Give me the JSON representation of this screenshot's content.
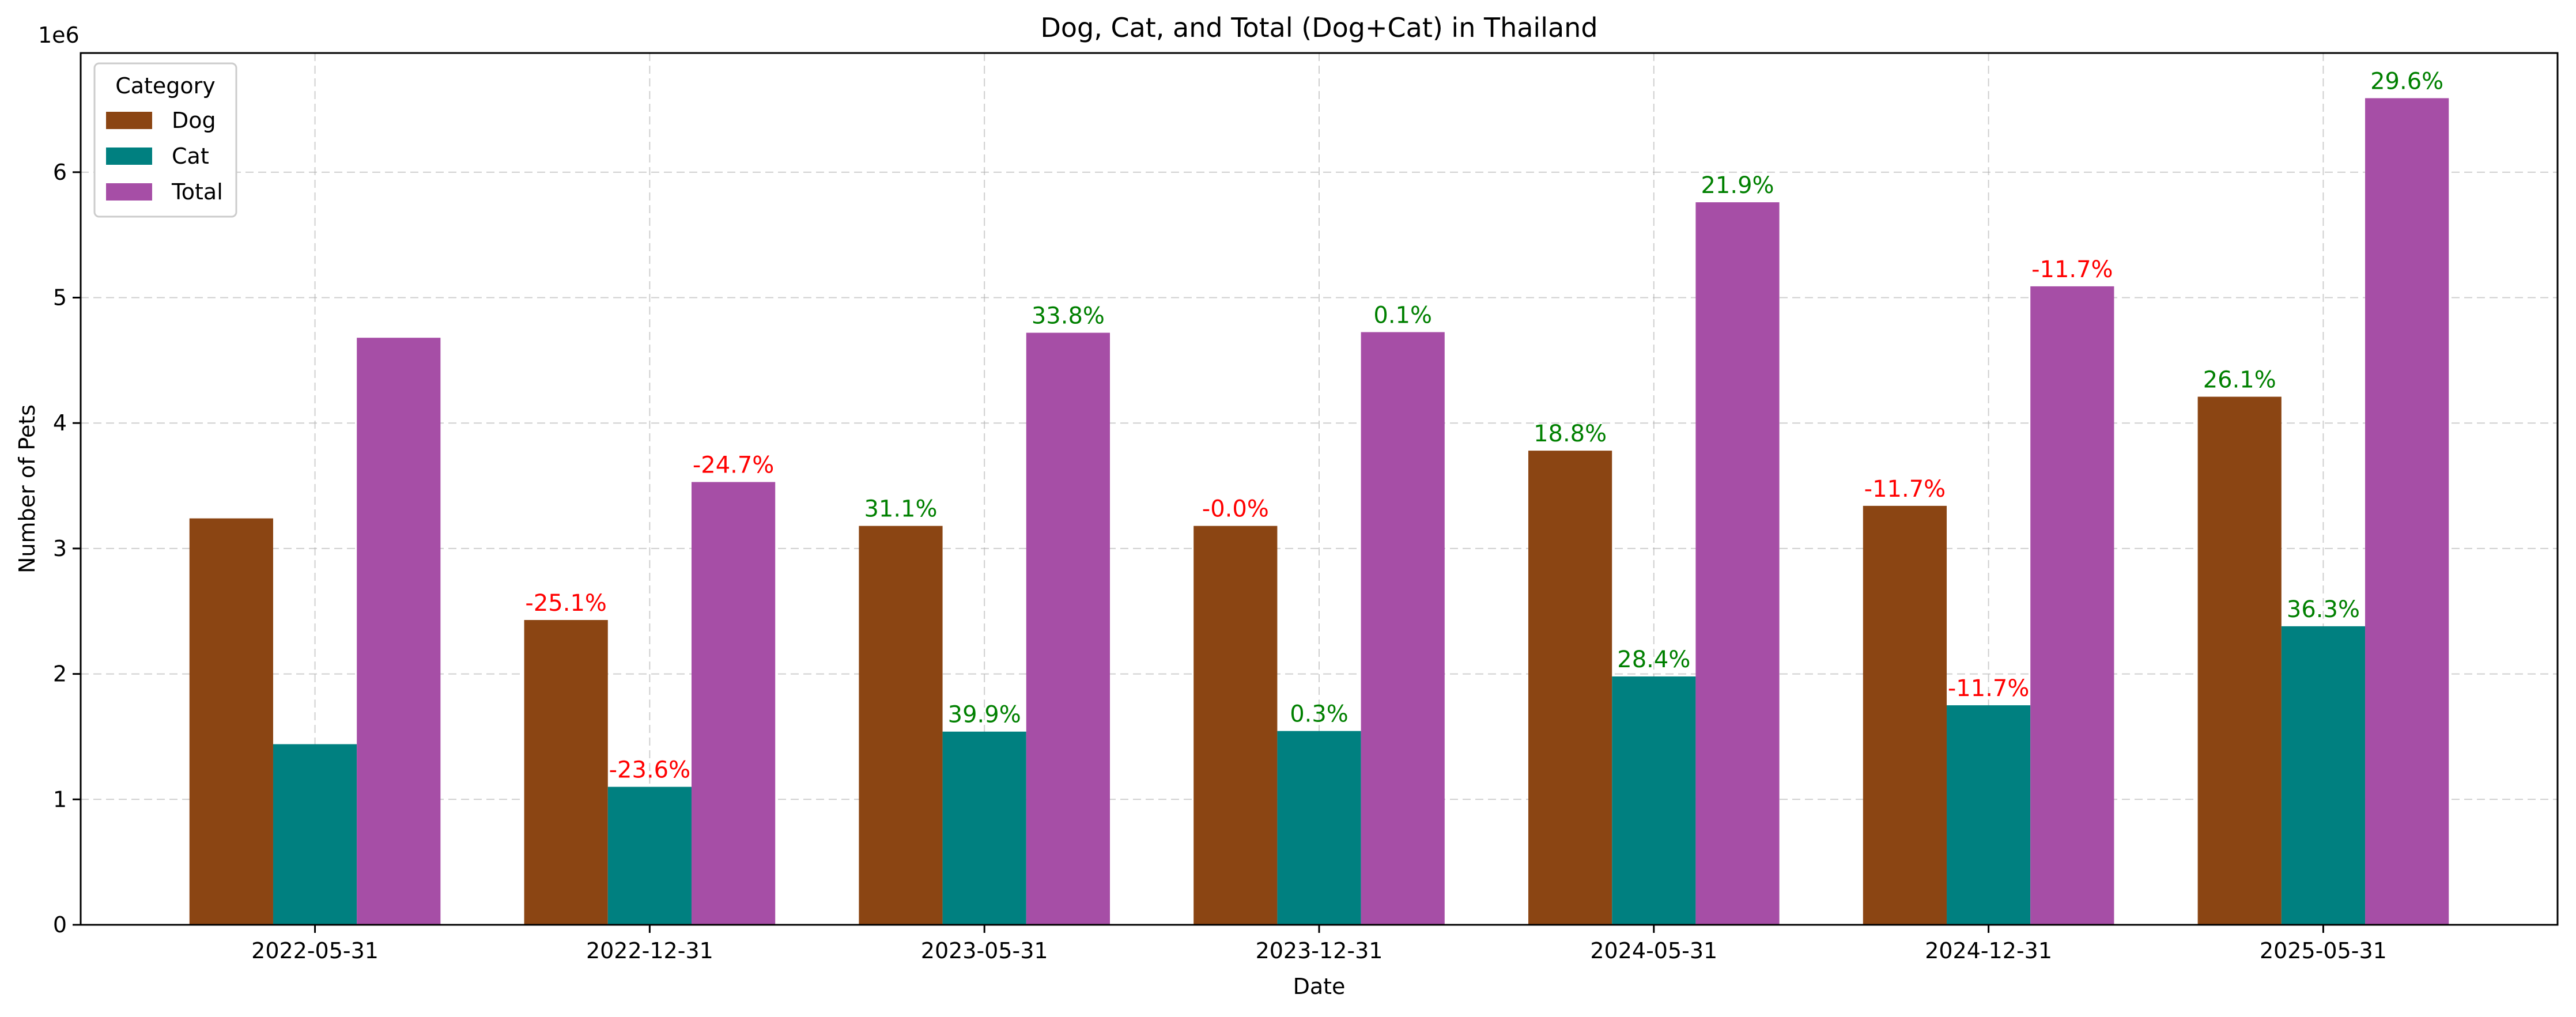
{
  "chart_data": {
    "type": "bar",
    "title": "Dog, Cat, and Total (Dog+Cat) in Thailand",
    "xlabel": "Date",
    "ylabel": "Number of Pets",
    "y_offset_label": "1e6",
    "ylim": [
      0,
      6.95
    ],
    "yticks": [
      "0",
      "1",
      "2",
      "3",
      "4",
      "5",
      "6"
    ],
    "grid": true,
    "categories": [
      "2022-05-31",
      "2022-12-31",
      "2023-05-31",
      "2023-12-31",
      "2024-05-31",
      "2024-12-31",
      "2025-05-31"
    ],
    "series": [
      {
        "name": "Dog",
        "color": "#8B4513",
        "values": [
          3.24,
          2.43,
          3.18,
          3.18,
          3.78,
          3.34,
          4.21
        ],
        "labels": [
          "",
          "-25.1%",
          "31.1%",
          "-0.0%",
          "18.8%",
          "-11.7%",
          "26.1%"
        ]
      },
      {
        "name": "Cat",
        "color": "#008080",
        "values": [
          1.44,
          1.1,
          1.54,
          1.545,
          1.98,
          1.75,
          2.38
        ],
        "labels": [
          "",
          "-23.6%",
          "39.9%",
          "0.3%",
          "28.4%",
          "-11.7%",
          "36.3%"
        ]
      },
      {
        "name": "Total",
        "color": "#A64EA6",
        "values": [
          4.68,
          3.53,
          4.72,
          4.725,
          5.76,
          5.09,
          6.59
        ],
        "labels": [
          "",
          "-24.7%",
          "33.8%",
          "0.1%",
          "21.9%",
          "-11.7%",
          "29.6%"
        ]
      }
    ],
    "legend": {
      "title": "Category",
      "placement": "top-left"
    },
    "label_colors": {
      "positive": "#008000",
      "negative": "#FF0000"
    }
  }
}
